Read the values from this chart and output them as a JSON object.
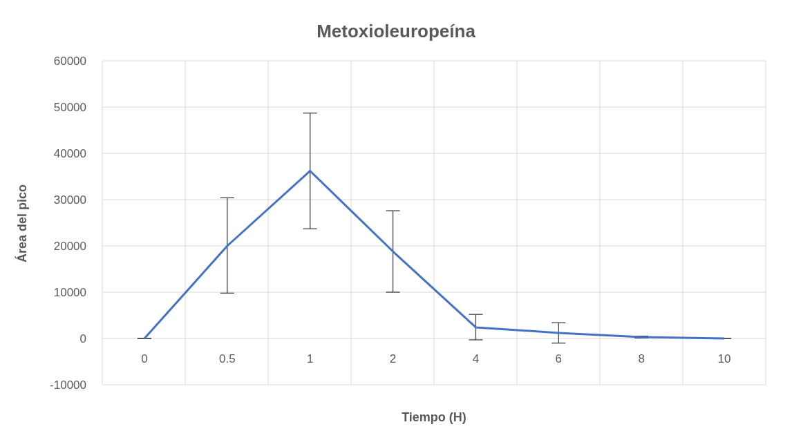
{
  "chart_data": {
    "type": "line",
    "title": "Metoxioleuropeína",
    "xlabel": "Tiempo (H)",
    "ylabel": "Área del pico",
    "categories": [
      "0",
      "0.5",
      "1",
      "2",
      "4",
      "6",
      "8",
      "10"
    ],
    "series": [
      {
        "color": "#4472c4",
        "values": [
          0,
          20000,
          36200,
          18800,
          2400,
          1200,
          300,
          0
        ],
        "errors": [
          null,
          [
            9800,
            30400
          ],
          [
            23700,
            48700
          ],
          [
            10000,
            27600
          ],
          [
            -300,
            5200
          ],
          [
            -1000,
            3400
          ],
          [
            100,
            500
          ],
          null
        ]
      }
    ],
    "ylim": [
      -10000,
      60000
    ],
    "yticks": [
      -10000,
      0,
      10000,
      20000,
      30000,
      40000,
      50000,
      60000
    ],
    "grid": true,
    "marker": "none",
    "line_style": "solid",
    "legend": false
  }
}
